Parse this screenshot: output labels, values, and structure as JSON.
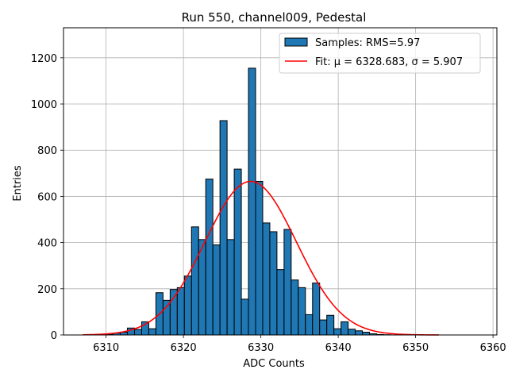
{
  "chart_data": {
    "type": "bar",
    "title": "Run 550, channel009, Pedestal",
    "xlabel": "ADC Counts",
    "ylabel": "Entries",
    "xlim": [
      6304.5,
      6360.5
    ],
    "ylim": [
      0,
      1330
    ],
    "xticks": [
      6310,
      6320,
      6330,
      6340,
      6350,
      6360
    ],
    "yticks": [
      0,
      200,
      400,
      600,
      800,
      1000,
      1200
    ],
    "grid": true,
    "legend_position": "top-right",
    "histogram": {
      "name": "Samples: RMS=5.97",
      "color": "#1f77b4",
      "edge_color": "#000000",
      "bin_start": 6310.0,
      "bin_width": 0.92,
      "values": [
        3,
        8,
        12,
        30,
        24,
        57,
        27,
        183,
        150,
        197,
        205,
        255,
        468,
        413,
        675,
        390,
        928,
        413,
        718,
        155,
        1155,
        665,
        485,
        447,
        283,
        457,
        238,
        205,
        88,
        225,
        65,
        85,
        27,
        57,
        25,
        18,
        12,
        5,
        2,
        1
      ]
    },
    "fit": {
      "name": "Fit: μ = 6328.683, σ = 5.907",
      "color": "#ff0000",
      "mu": 6328.683,
      "sigma": 5.907,
      "amplitude": 665,
      "x_range": [
        6307,
        6353
      ]
    }
  }
}
